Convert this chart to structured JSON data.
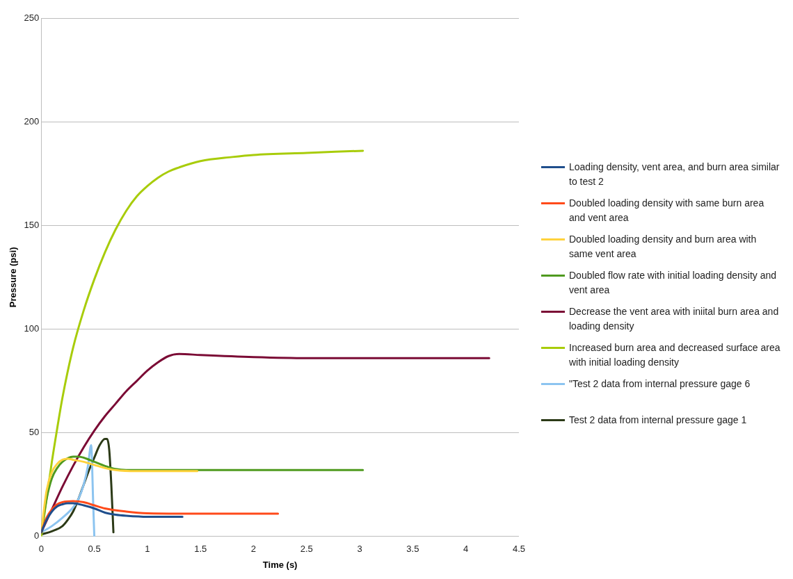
{
  "chart_data": {
    "type": "line",
    "xlabel": "Time (s)",
    "ylabel": "Pressure (psi)",
    "xlim": [
      0,
      4.5
    ],
    "xticks": [
      0,
      0.5,
      1,
      1.5,
      2,
      2.5,
      3,
      3.5,
      4,
      4.5
    ],
    "ylim": [
      0,
      250
    ],
    "yticks": [
      0,
      50,
      100,
      150,
      200,
      250
    ],
    "grid": "y",
    "legend": "right",
    "marker": "none",
    "line_style": "solid",
    "series": [
      {
        "name": "Loading density, vent area, and burn area similar to test 2",
        "color": "#1f4e8c",
        "x": [
          0,
          0.05,
          0.1,
          0.15,
          0.2,
          0.25,
          0.3,
          0.4,
          0.5,
          0.6,
          0.7,
          0.8,
          1.0,
          1.33
        ],
        "values": [
          2,
          8,
          12,
          14.5,
          15.5,
          16,
          16,
          15,
          13.5,
          11.5,
          10.5,
          10,
          9.5,
          9.5
        ]
      },
      {
        "name": "Doubled loading density with same burn area and vent area",
        "color": "#ff4a1a",
        "x": [
          0,
          0.05,
          0.1,
          0.15,
          0.2,
          0.3,
          0.4,
          0.5,
          0.6,
          0.8,
          1.0,
          1.5,
          2.23
        ],
        "values": [
          2,
          9,
          13,
          15.5,
          16.5,
          17,
          16.5,
          15,
          13.5,
          12,
          11.2,
          11,
          11
        ]
      },
      {
        "name": "Doubled loading density and burn area with same vent area",
        "color": "#ffd23c",
        "x": [
          0,
          0.05,
          0.1,
          0.15,
          0.2,
          0.25,
          0.3,
          0.4,
          0.5,
          0.6,
          0.7,
          0.9,
          1.2,
          1.47
        ],
        "values": [
          2,
          22,
          31,
          35,
          37,
          37.5,
          37,
          36,
          34.5,
          33,
          32,
          31.5,
          31.5,
          31.5
        ]
      },
      {
        "name": "Doubled flow rate with initial loading density and vent area",
        "color": "#4f9a1f",
        "x": [
          0,
          0.05,
          0.1,
          0.15,
          0.2,
          0.3,
          0.35,
          0.4,
          0.5,
          0.6,
          0.7,
          0.8,
          1.0,
          1.5,
          2.0,
          3.03
        ],
        "values": [
          2,
          18,
          28,
          33,
          36,
          38.5,
          38.5,
          38,
          36,
          34,
          32.5,
          32,
          32,
          32,
          32,
          32
        ]
      },
      {
        "name": "Decrease the vent area with iniital burn area and loading density",
        "color": "#7b0b35",
        "x": [
          0,
          0.1,
          0.2,
          0.3,
          0.4,
          0.5,
          0.6,
          0.7,
          0.8,
          0.9,
          1.0,
          1.1,
          1.2,
          1.3,
          1.5,
          2.0,
          2.5,
          3.0,
          3.5,
          4.22
        ],
        "values": [
          2,
          13,
          24,
          34,
          43,
          51,
          58,
          64,
          70,
          75,
          80,
          84,
          87,
          88,
          87.5,
          86.5,
          86,
          86,
          86,
          86
        ]
      },
      {
        "name": "Increased burn area and decreased surface area with initial loading density",
        "color": "#a8cc0a",
        "x": [
          0,
          0.05,
          0.1,
          0.15,
          0.2,
          0.3,
          0.4,
          0.5,
          0.6,
          0.7,
          0.8,
          0.9,
          1.0,
          1.1,
          1.2,
          1.3,
          1.5,
          1.8,
          2.0,
          2.5,
          3.03
        ],
        "values": [
          0,
          18,
          36,
          52,
          67,
          91,
          109,
          124,
          137,
          148,
          157,
          164,
          169,
          173,
          176,
          178,
          181,
          183,
          184,
          185,
          186
        ]
      },
      {
        "name": "\"Test 2 data from internal pressure gage 6",
        "color": "#8cc4f0",
        "x": [
          0,
          0.1,
          0.2,
          0.3,
          0.35,
          0.4,
          0.44,
          0.47,
          0.49,
          0.5
        ],
        "values": [
          2,
          5,
          9,
          14,
          18,
          25,
          34,
          44,
          15,
          0
        ]
      },
      {
        "name": "Test 2 data from internal pressure gage 1",
        "color": "#2c3a17",
        "x": [
          0,
          0.1,
          0.2,
          0.25,
          0.3,
          0.35,
          0.4,
          0.45,
          0.5,
          0.55,
          0.6,
          0.62,
          0.64,
          0.66,
          0.68
        ],
        "values": [
          1,
          2.5,
          5,
          8,
          12,
          18,
          25,
          32,
          38,
          44,
          47,
          47,
          42,
          25,
          2
        ]
      }
    ]
  }
}
